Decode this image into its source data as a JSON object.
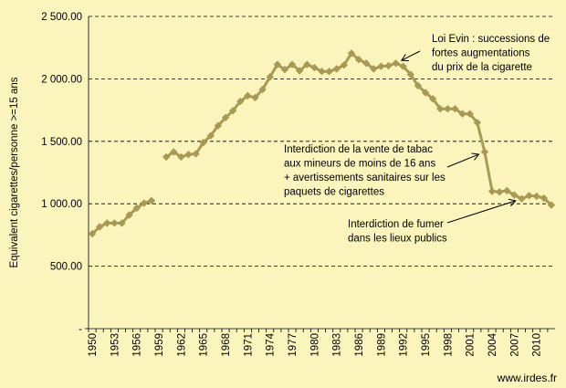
{
  "chart_data": {
    "type": "line",
    "ylabel": "Equivalent cigarettes/personne >=15 ans",
    "ylim": [
      0,
      2500
    ],
    "xlim": [
      1950,
      2012
    ],
    "grid": "horizontal-dashed",
    "yticks": [
      "-",
      "500.00",
      "1 000.00",
      "1 500.00",
      "2 000.00",
      "2 500.00"
    ],
    "xticks": [
      "1950",
      "1953",
      "1956",
      "1959",
      "1962",
      "1965",
      "1968",
      "1971",
      "1974",
      "1977",
      "1980",
      "1983",
      "1986",
      "1989",
      "1992",
      "1995",
      "1998",
      "2001",
      "2004",
      "2007",
      "2010"
    ],
    "line_color": "#a89a54",
    "series": [
      {
        "segments": [
          [
            [
              1950,
              760
            ],
            [
              1951,
              815
            ],
            [
              1952,
              845
            ],
            [
              1953,
              845
            ],
            [
              1954,
              845
            ],
            [
              1955,
              910
            ],
            [
              1956,
              965
            ],
            [
              1957,
              1005
            ],
            [
              1958,
              1025
            ]
          ],
          [
            [
              1960,
              1375
            ],
            [
              1961,
              1415
            ],
            [
              1962,
              1375
            ],
            [
              1963,
              1395
            ],
            [
              1964,
              1400
            ],
            [
              1965,
              1490
            ],
            [
              1966,
              1545
            ],
            [
              1967,
              1625
            ],
            [
              1968,
              1690
            ],
            [
              1969,
              1745
            ],
            [
              1970,
              1820
            ],
            [
              1971,
              1865
            ],
            [
              1972,
              1850
            ],
            [
              1973,
              1915
            ],
            [
              1974,
              2015
            ],
            [
              1975,
              2115
            ],
            [
              1976,
              2075
            ],
            [
              1977,
              2115
            ],
            [
              1978,
              2065
            ],
            [
              1979,
              2115
            ],
            [
              1980,
              2090
            ],
            [
              1981,
              2060
            ],
            [
              1982,
              2060
            ],
            [
              1983,
              2080
            ],
            [
              1984,
              2110
            ],
            [
              1985,
              2205
            ],
            [
              1986,
              2155
            ],
            [
              1987,
              2125
            ],
            [
              1988,
              2080
            ],
            [
              1989,
              2100
            ],
            [
              1990,
              2105
            ],
            [
              1991,
              2125
            ],
            [
              1992,
              2100
            ],
            [
              1993,
              2035
            ],
            [
              1994,
              1945
            ],
            [
              1995,
              1890
            ],
            [
              1996,
              1840
            ],
            [
              1997,
              1760
            ],
            [
              1998,
              1760
            ],
            [
              1999,
              1760
            ],
            [
              2000,
              1720
            ],
            [
              2001,
              1720
            ],
            [
              2002,
              1650
            ],
            [
              2003,
              1415
            ],
            [
              2004,
              1100
            ],
            [
              2005,
              1095
            ],
            [
              2006,
              1105
            ],
            [
              2007,
              1070
            ],
            [
              2008,
              1040
            ],
            [
              2009,
              1065
            ],
            [
              2010,
              1060
            ],
            [
              2011,
              1045
            ],
            [
              2012,
              990
            ]
          ]
        ]
      }
    ],
    "annotations": [
      {
        "lines": [
          "Loi Evin : successions de",
          "fortes augmentations",
          "du prix de la cigarette"
        ],
        "arrow_to": [
          1991,
          2125
        ]
      },
      {
        "lines": [
          "Interdiction de la vente de tabac",
          "aux mineurs de moins de 16 ans",
          "+ avertissements sanitaires sur les",
          "paquets de cigarettes"
        ],
        "arrow_to": [
          2003,
          1415
        ]
      },
      {
        "lines": [
          "Interdiction de fumer",
          "dans les lieux publics"
        ],
        "arrow_to": [
          2008,
          1040
        ]
      }
    ]
  },
  "source_label": "www.irdes.fr"
}
